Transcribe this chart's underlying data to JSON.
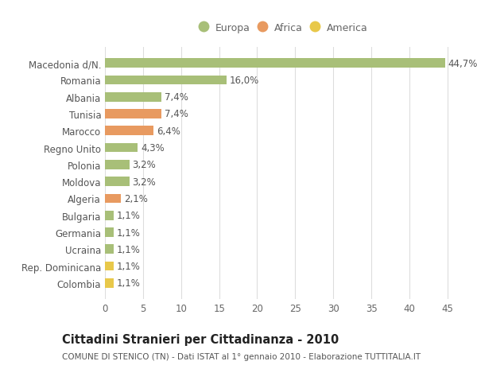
{
  "categories": [
    "Colombia",
    "Rep. Dominicana",
    "Ucraina",
    "Germania",
    "Bulgaria",
    "Algeria",
    "Moldova",
    "Polonia",
    "Regno Unito",
    "Marocco",
    "Tunisia",
    "Albania",
    "Romania",
    "Macedonia d/N."
  ],
  "values": [
    1.1,
    1.1,
    1.1,
    1.1,
    1.1,
    2.1,
    3.2,
    3.2,
    4.3,
    6.4,
    7.4,
    7.4,
    16.0,
    44.7
  ],
  "colors": [
    "#e8c84a",
    "#e8c84a",
    "#a8bf78",
    "#a8bf78",
    "#a8bf78",
    "#e89a60",
    "#a8bf78",
    "#a8bf78",
    "#a8bf78",
    "#e89a60",
    "#e89a60",
    "#a8bf78",
    "#a8bf78",
    "#a8bf78"
  ],
  "labels": [
    "1,1%",
    "1,1%",
    "1,1%",
    "1,1%",
    "1,1%",
    "2,1%",
    "3,2%",
    "3,2%",
    "4,3%",
    "6,4%",
    "7,4%",
    "7,4%",
    "16,0%",
    "44,7%"
  ],
  "legend": [
    {
      "label": "Europa",
      "color": "#a8bf78"
    },
    {
      "label": "Africa",
      "color": "#e89a60"
    },
    {
      "label": "America",
      "color": "#e8c84a"
    }
  ],
  "title": "Cittadini Stranieri per Cittadinanza - 2010",
  "subtitle": "COMUNE DI STENICO (TN) - Dati ISTAT al 1° gennaio 2010 - Elaborazione TUTTITALIA.IT",
  "xlim": [
    0,
    47
  ],
  "xticks": [
    0,
    5,
    10,
    15,
    20,
    25,
    30,
    35,
    40,
    45
  ],
  "background_color": "#ffffff",
  "grid_color": "#dddddd",
  "bar_height": 0.55,
  "label_fontsize": 8.5,
  "tick_fontsize": 8.5,
  "title_fontsize": 10.5,
  "subtitle_fontsize": 7.5
}
